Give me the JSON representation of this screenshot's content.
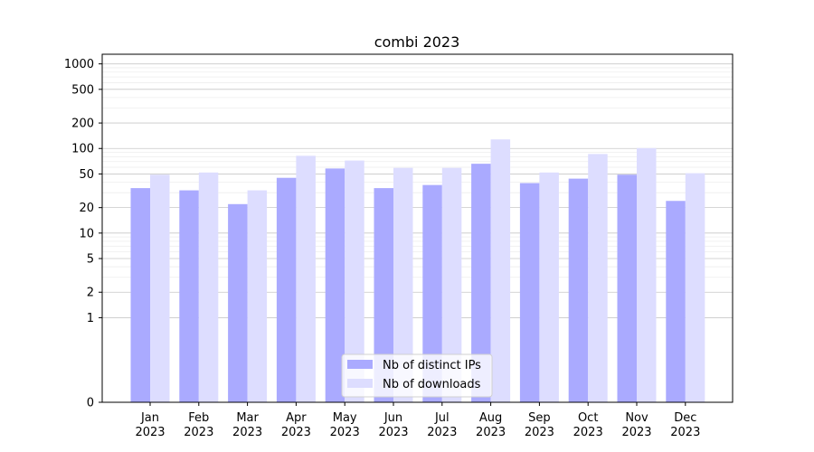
{
  "chart_data": {
    "type": "bar",
    "title": "combi 2023",
    "xlabel": "",
    "ylabel": "",
    "yscale": "symlog",
    "ylim": [
      0,
      1300
    ],
    "grid": "horizontal major and minor",
    "legend_position": "bottom-center",
    "categories": [
      [
        "Jan",
        "2023"
      ],
      [
        "Feb",
        "2023"
      ],
      [
        "Mar",
        "2023"
      ],
      [
        "Apr",
        "2023"
      ],
      [
        "May",
        "2023"
      ],
      [
        "Jun",
        "2023"
      ],
      [
        "Jul",
        "2023"
      ],
      [
        "Aug",
        "2023"
      ],
      [
        "Sep",
        "2023"
      ],
      [
        "Oct",
        "2023"
      ],
      [
        "Nov",
        "2023"
      ],
      [
        "Dec",
        "2023"
      ]
    ],
    "yticks": [
      0,
      1,
      2,
      5,
      10,
      20,
      50,
      100,
      200,
      500,
      1000
    ],
    "series": [
      {
        "name": "Nb of distinct IPs",
        "color": "#aaaaff",
        "values": [
          34,
          32,
          22,
          45,
          58,
          34,
          37,
          66,
          39,
          44,
          49,
          24
        ]
      },
      {
        "name": "Nb of downloads",
        "color": "#ddddff",
        "values": [
          49,
          52,
          32,
          82,
          72,
          59,
          59,
          128,
          52,
          86,
          101,
          51
        ]
      }
    ]
  }
}
